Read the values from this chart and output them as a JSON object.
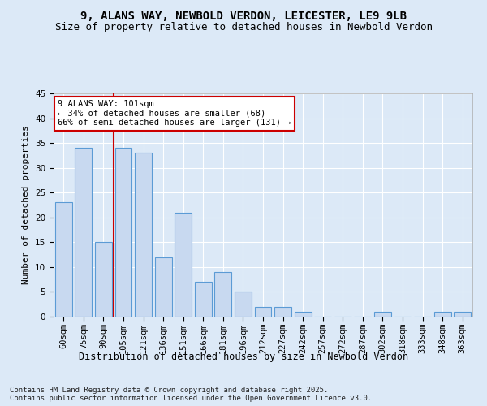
{
  "title1": "9, ALANS WAY, NEWBOLD VERDON, LEICESTER, LE9 9LB",
  "title2": "Size of property relative to detached houses in Newbold Verdon",
  "xlabel": "Distribution of detached houses by size in Newbold Verdon",
  "ylabel": "Number of detached properties",
  "categories": [
    "60sqm",
    "75sqm",
    "90sqm",
    "105sqm",
    "121sqm",
    "136sqm",
    "151sqm",
    "166sqm",
    "181sqm",
    "196sqm",
    "212sqm",
    "227sqm",
    "242sqm",
    "257sqm",
    "272sqm",
    "287sqm",
    "302sqm",
    "318sqm",
    "333sqm",
    "348sqm",
    "363sqm"
  ],
  "values": [
    23,
    34,
    15,
    34,
    33,
    12,
    21,
    7,
    9,
    5,
    2,
    2,
    1,
    0,
    0,
    0,
    1,
    0,
    0,
    1,
    1
  ],
  "bar_color": "#c8d9f0",
  "bar_edge_color": "#5b9bd5",
  "vline_x_index": 2,
  "vline_color": "#cc0000",
  "annotation_text": "9 ALANS WAY: 101sqm\n← 34% of detached houses are smaller (68)\n66% of semi-detached houses are larger (131) →",
  "annotation_box_color": "#ffffff",
  "annotation_box_edge": "#cc0000",
  "bg_color": "#dce9f7",
  "plot_bg_color": "#dce9f7",
  "grid_color": "#ffffff",
  "footer_text": "Contains HM Land Registry data © Crown copyright and database right 2025.\nContains public sector information licensed under the Open Government Licence v3.0.",
  "ylim": [
    0,
    45
  ],
  "yticks": [
    0,
    5,
    10,
    15,
    20,
    25,
    30,
    35,
    40,
    45
  ],
  "title1_fontsize": 10,
  "title2_fontsize": 9,
  "xlabel_fontsize": 8.5,
  "ylabel_fontsize": 8,
  "tick_fontsize": 7.5,
  "annot_fontsize": 7.5,
  "footer_fontsize": 6.5
}
